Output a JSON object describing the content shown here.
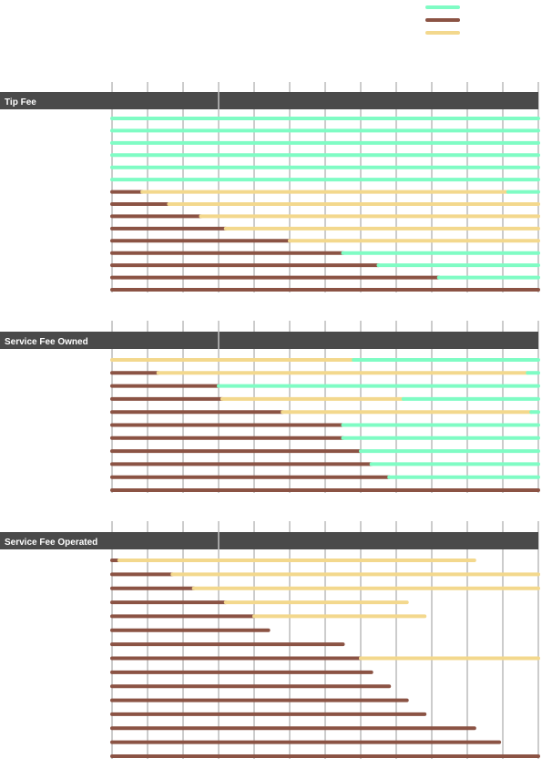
{
  "colors": {
    "series_a": "#7ffcc4",
    "series_b": "#8b5344",
    "series_c": "#f3d88d",
    "header_bg": "#4a4a4a",
    "header_text": "#ffffff",
    "grid": "#999999"
  },
  "legend": {
    "position": "top-right",
    "entries": [
      {
        "color": "#7ffcc4",
        "label": ""
      },
      {
        "color": "#8b5344",
        "label": ""
      },
      {
        "color": "#f3d88d",
        "label": ""
      }
    ]
  },
  "chart_data": {
    "type": "bar",
    "orientation": "horizontal",
    "stacked": true,
    "xlim": [
      0,
      12
    ],
    "grid": true,
    "panels": [
      {
        "title": "Tip Fee",
        "rows": [
          [
            0,
            0,
            12
          ],
          [
            0,
            0,
            12
          ],
          [
            0,
            0,
            12
          ],
          [
            0,
            0,
            12
          ],
          [
            0,
            0,
            12
          ],
          [
            0,
            0,
            12
          ],
          [
            0.85,
            10.3,
            0.85
          ],
          [
            1.6,
            10.4,
            0
          ],
          [
            2.5,
            9.5,
            0
          ],
          [
            3.2,
            8.8,
            0
          ],
          [
            5,
            7,
            0
          ],
          [
            6.5,
            0,
            5.5
          ],
          [
            7.5,
            0,
            4.5
          ],
          [
            9.2,
            0,
            2.8
          ],
          [
            12,
            0,
            0
          ]
        ]
      },
      {
        "title": "Service Fee Owned",
        "rows": [
          [
            0,
            6.8,
            5.2
          ],
          [
            1.3,
            10.4,
            0.3
          ],
          [
            3.0,
            0,
            9.0
          ],
          [
            3.1,
            5.1,
            3.8
          ],
          [
            4.8,
            7.0,
            0.2
          ],
          [
            6.5,
            0,
            5.5
          ],
          [
            6.5,
            0,
            5.5
          ],
          [
            7.0,
            0,
            5.0
          ],
          [
            7.3,
            0,
            4.7
          ],
          [
            7.8,
            0,
            4.2
          ],
          [
            12,
            0,
            0
          ]
        ]
      },
      {
        "title": "Service Fee Operated",
        "rows": [
          [
            0.2,
            10.0,
            0
          ],
          [
            1.7,
            10.3,
            0
          ],
          [
            2.3,
            9.7,
            0
          ],
          [
            3.2,
            5.1,
            0
          ],
          [
            4.0,
            4.8,
            0
          ],
          [
            4.4,
            0,
            0
          ],
          [
            6.5,
            0,
            0
          ],
          [
            7.0,
            5.0,
            0
          ],
          [
            7.3,
            0,
            0
          ],
          [
            7.8,
            0,
            0
          ],
          [
            8.3,
            0,
            0
          ],
          [
            8.8,
            0,
            0
          ],
          [
            10.2,
            0,
            0
          ],
          [
            10.9,
            0,
            0
          ],
          [
            12,
            0,
            0
          ]
        ]
      }
    ]
  }
}
